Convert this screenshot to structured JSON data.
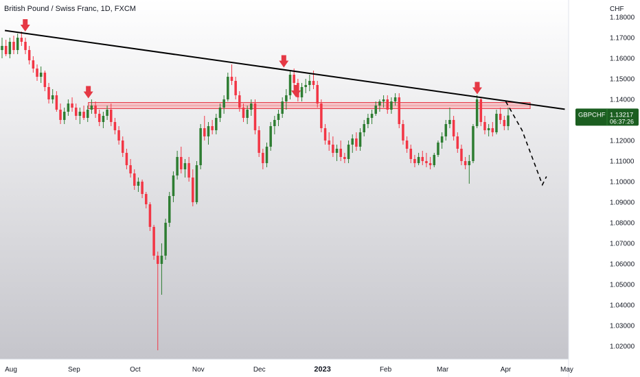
{
  "chart_data": {
    "type": "candlestick",
    "title": "British Pound / Swiss Franc, 1D, FXCM",
    "currency": "CHF",
    "ylim": [
      1.015,
      1.187
    ],
    "y_ticks": [
      "1.18000",
      "1.17000",
      "1.16000",
      "1.15000",
      "1.14000",
      "1.13000",
      "1.12000",
      "1.11000",
      "1.10000",
      "1.09000",
      "1.08000",
      "1.07000",
      "1.06000",
      "1.05000",
      "1.04000",
      "1.03000",
      "1.02000"
    ],
    "x_ticks": [
      {
        "label": "Aug",
        "bold": false,
        "day": 0
      },
      {
        "label": "Sep",
        "bold": false,
        "day": 31
      },
      {
        "label": "Oct",
        "bold": false,
        "day": 61
      },
      {
        "label": "Nov",
        "bold": false,
        "day": 92
      },
      {
        "label": "Dec",
        "bold": false,
        "day": 122
      },
      {
        "label": "2023",
        "bold": true,
        "day": 153
      },
      {
        "label": "Feb",
        "bold": false,
        "day": 184
      },
      {
        "label": "Mar",
        "bold": false,
        "day": 212
      },
      {
        "label": "Apr",
        "bold": false,
        "day": 243
      },
      {
        "label": "May",
        "bold": false,
        "day": 273
      }
    ],
    "price_badge": {
      "symbol": "GBPCHF",
      "price": "1.13217",
      "countdown": "06:37:26",
      "value": 1.1322
    },
    "resistance_zone": {
      "low": 1.1355,
      "high": 1.1385
    },
    "trendline": [
      {
        "day": -3,
        "price": 1.1735
      },
      {
        "day": 272,
        "price": 1.1352
      }
    ],
    "projection": [
      {
        "day": 243,
        "price": 1.139
      },
      {
        "day": 251,
        "price": 1.125
      },
      {
        "day": 261,
        "price": 1.0985
      },
      {
        "day": 263,
        "price": 1.1025
      }
    ],
    "arrows": [
      {
        "day": 7,
        "price": 1.173
      },
      {
        "day": 38,
        "price": 1.1405
      },
      {
        "day": 134,
        "price": 1.1555
      },
      {
        "day": 140,
        "price": 1.141
      },
      {
        "day": 229,
        "price": 1.1425
      }
    ],
    "colors": {
      "up": "#2e7d32",
      "down": "#f23645",
      "zone_fill": "#f5b5bb",
      "zone_stroke": "#e53945",
      "arrow": "#e53945",
      "badge": "#1b5e20",
      "trendline": "#000000",
      "plot_bg_top": "#ffffff",
      "plot_bg_bottom": "#c8c8ce"
    },
    "candles": [
      [
        1.164,
        1.17,
        1.16,
        1.166
      ],
      [
        1.166,
        1.169,
        1.161,
        1.162
      ],
      [
        1.162,
        1.17,
        1.16,
        1.168
      ],
      [
        1.168,
        1.171,
        1.162,
        1.164
      ],
      [
        1.164,
        1.172,
        1.162,
        1.17
      ],
      [
        1.17,
        1.173,
        1.166,
        1.168
      ],
      [
        1.168,
        1.17,
        1.162,
        1.164
      ],
      [
        1.164,
        1.166,
        1.157,
        1.159
      ],
      [
        1.159,
        1.161,
        1.153,
        1.155
      ],
      [
        1.155,
        1.157,
        1.149,
        1.151
      ],
      [
        1.151,
        1.156,
        1.148,
        1.153
      ],
      [
        1.153,
        1.154,
        1.144,
        1.146
      ],
      [
        1.146,
        1.148,
        1.138,
        1.14
      ],
      [
        1.14,
        1.145,
        1.138,
        1.142
      ],
      [
        1.142,
        1.144,
        1.134,
        1.135
      ],
      [
        1.135,
        1.138,
        1.128,
        1.13
      ],
      [
        1.13,
        1.136,
        1.128,
        1.134
      ],
      [
        1.134,
        1.14,
        1.132,
        1.138
      ],
      [
        1.138,
        1.141,
        1.134,
        1.136
      ],
      [
        1.136,
        1.138,
        1.13,
        1.132
      ],
      [
        1.132,
        1.136,
        1.128,
        1.134
      ],
      [
        1.134,
        1.137,
        1.13,
        1.131
      ],
      [
        1.131,
        1.137,
        1.129,
        1.135
      ],
      [
        1.135,
        1.14,
        1.133,
        1.137
      ],
      [
        1.137,
        1.139,
        1.131,
        1.133
      ],
      [
        1.133,
        1.135,
        1.127,
        1.129
      ],
      [
        1.129,
        1.134,
        1.126,
        1.132
      ],
      [
        1.132,
        1.137,
        1.13,
        1.135
      ],
      [
        1.135,
        1.138,
        1.127,
        1.129
      ],
      [
        1.129,
        1.131,
        1.123,
        1.125
      ],
      [
        1.125,
        1.127,
        1.118,
        1.12
      ],
      [
        1.12,
        1.122,
        1.112,
        1.114
      ],
      [
        1.114,
        1.116,
        1.106,
        1.108
      ],
      [
        1.108,
        1.111,
        1.102,
        1.104
      ],
      [
        1.104,
        1.106,
        1.096,
        1.098
      ],
      [
        1.098,
        1.102,
        1.095,
        1.1
      ],
      [
        1.1,
        1.101,
        1.092,
        1.094
      ],
      [
        1.094,
        1.095,
        1.087,
        1.089
      ],
      [
        1.089,
        1.09,
        1.076,
        1.078
      ],
      [
        1.078,
        1.079,
        1.062,
        1.064
      ],
      [
        1.064,
        1.066,
        1.018,
        1.06
      ],
      [
        1.06,
        1.07,
        1.045,
        1.064
      ],
      [
        1.064,
        1.082,
        1.062,
        1.08
      ],
      [
        1.08,
        1.095,
        1.078,
        1.093
      ],
      [
        1.093,
        1.105,
        1.09,
        1.103
      ],
      [
        1.103,
        1.115,
        1.101,
        1.112
      ],
      [
        1.112,
        1.117,
        1.104,
        1.106
      ],
      [
        1.106,
        1.111,
        1.102,
        1.109
      ],
      [
        1.109,
        1.112,
        1.1,
        1.102
      ],
      [
        1.102,
        1.106,
        1.088,
        1.09
      ],
      [
        1.09,
        1.11,
        1.089,
        1.108
      ],
      [
        1.108,
        1.128,
        1.106,
        1.126
      ],
      [
        1.126,
        1.132,
        1.12,
        1.122
      ],
      [
        1.122,
        1.129,
        1.118,
        1.127
      ],
      [
        1.127,
        1.13,
        1.123,
        1.125
      ],
      [
        1.125,
        1.133,
        1.123,
        1.131
      ],
      [
        1.131,
        1.138,
        1.129,
        1.136
      ],
      [
        1.136,
        1.142,
        1.133,
        1.14
      ],
      [
        1.14,
        1.153,
        1.139,
        1.151
      ],
      [
        1.151,
        1.157,
        1.147,
        1.149
      ],
      [
        1.149,
        1.151,
        1.14,
        1.142
      ],
      [
        1.142,
        1.144,
        1.134,
        1.136
      ],
      [
        1.136,
        1.138,
        1.129,
        1.131
      ],
      [
        1.131,
        1.137,
        1.128,
        1.135
      ],
      [
        1.135,
        1.14,
        1.132,
        1.138
      ],
      [
        1.138,
        1.14,
        1.123,
        1.125
      ],
      [
        1.125,
        1.127,
        1.112,
        1.114
      ],
      [
        1.114,
        1.116,
        1.106,
        1.109
      ],
      [
        1.109,
        1.119,
        1.107,
        1.117
      ],
      [
        1.117,
        1.129,
        1.115,
        1.127
      ],
      [
        1.127,
        1.132,
        1.123,
        1.13
      ],
      [
        1.13,
        1.135,
        1.127,
        1.133
      ],
      [
        1.133,
        1.141,
        1.131,
        1.139
      ],
      [
        1.139,
        1.145,
        1.135,
        1.142
      ],
      [
        1.142,
        1.154,
        1.14,
        1.152
      ],
      [
        1.152,
        1.155,
        1.146,
        1.148
      ],
      [
        1.148,
        1.15,
        1.139,
        1.141
      ],
      [
        1.141,
        1.148,
        1.139,
        1.146
      ],
      [
        1.146,
        1.15,
        1.143,
        1.147
      ],
      [
        1.147,
        1.152,
        1.144,
        1.149
      ],
      [
        1.149,
        1.154,
        1.145,
        1.147
      ],
      [
        1.147,
        1.149,
        1.136,
        1.138
      ],
      [
        1.138,
        1.14,
        1.124,
        1.126
      ],
      [
        1.126,
        1.128,
        1.118,
        1.12
      ],
      [
        1.12,
        1.124,
        1.115,
        1.118
      ],
      [
        1.118,
        1.122,
        1.112,
        1.114
      ],
      [
        1.114,
        1.118,
        1.11,
        1.116
      ],
      [
        1.116,
        1.12,
        1.11,
        1.112
      ],
      [
        1.112,
        1.114,
        1.109,
        1.111
      ],
      [
        1.111,
        1.12,
        1.109,
        1.118
      ],
      [
        1.118,
        1.123,
        1.114,
        1.121
      ],
      [
        1.121,
        1.124,
        1.115,
        1.117
      ],
      [
        1.117,
        1.126,
        1.115,
        1.124
      ],
      [
        1.124,
        1.13,
        1.122,
        1.128
      ],
      [
        1.128,
        1.133,
        1.126,
        1.131
      ],
      [
        1.131,
        1.135,
        1.128,
        1.133
      ],
      [
        1.133,
        1.139,
        1.132,
        1.137
      ],
      [
        1.137,
        1.14,
        1.134,
        1.139
      ],
      [
        1.139,
        1.142,
        1.136,
        1.14
      ],
      [
        1.14,
        1.142,
        1.133,
        1.135
      ],
      [
        1.135,
        1.141,
        1.133,
        1.139
      ],
      [
        1.139,
        1.143,
        1.137,
        1.141
      ],
      [
        1.141,
        1.143,
        1.126,
        1.128
      ],
      [
        1.128,
        1.13,
        1.118,
        1.12
      ],
      [
        1.12,
        1.122,
        1.114,
        1.116
      ],
      [
        1.116,
        1.118,
        1.109,
        1.111
      ],
      [
        1.111,
        1.113,
        1.107,
        1.109
      ],
      [
        1.109,
        1.114,
        1.108,
        1.112
      ],
      [
        1.112,
        1.115,
        1.108,
        1.11
      ],
      [
        1.11,
        1.114,
        1.107,
        1.109
      ],
      [
        1.109,
        1.112,
        1.106,
        1.108
      ],
      [
        1.108,
        1.114,
        1.107,
        1.113
      ],
      [
        1.113,
        1.12,
        1.112,
        1.119
      ],
      [
        1.119,
        1.124,
        1.116,
        1.122
      ],
      [
        1.122,
        1.13,
        1.12,
        1.128
      ],
      [
        1.128,
        1.136,
        1.126,
        1.13
      ],
      [
        1.13,
        1.132,
        1.12,
        1.122
      ],
      [
        1.122,
        1.124,
        1.114,
        1.116
      ],
      [
        1.116,
        1.118,
        1.108,
        1.11
      ],
      [
        1.11,
        1.112,
        1.106,
        1.108
      ],
      [
        1.108,
        1.113,
        1.099,
        1.11
      ],
      [
        1.11,
        1.128,
        1.109,
        1.127
      ],
      [
        1.127,
        1.142,
        1.126,
        1.14
      ],
      [
        1.14,
        1.141,
        1.127,
        1.129
      ],
      [
        1.129,
        1.132,
        1.123,
        1.125
      ],
      [
        1.125,
        1.128,
        1.122,
        1.126
      ],
      [
        1.126,
        1.129,
        1.122,
        1.124
      ],
      [
        1.124,
        1.135,
        1.123,
        1.133
      ],
      [
        1.133,
        1.136,
        1.128,
        1.13
      ],
      [
        1.13,
        1.132,
        1.125,
        1.127
      ],
      [
        1.127,
        1.136,
        1.125,
        1.1322
      ]
    ]
  }
}
